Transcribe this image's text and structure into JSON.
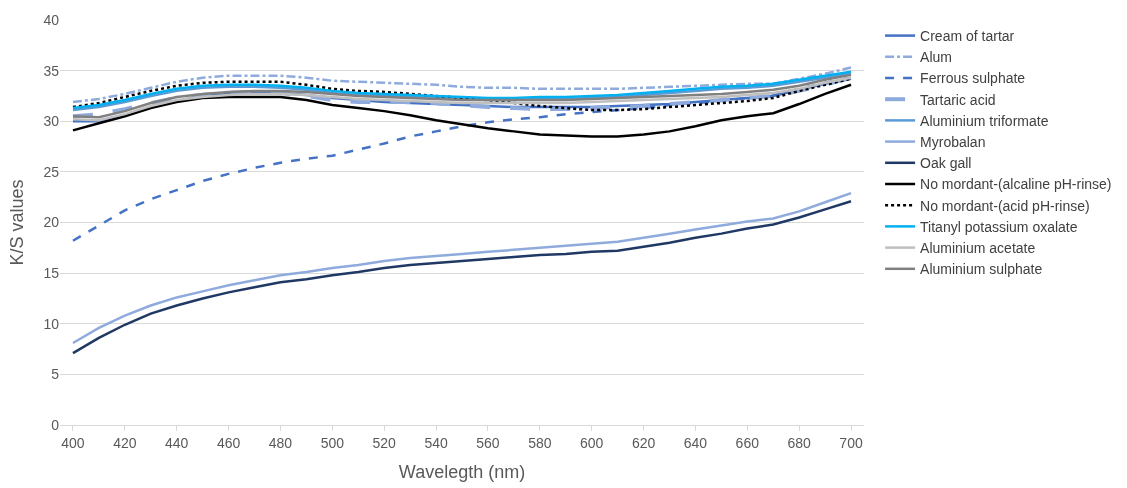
{
  "chart_data": {
    "type": "line",
    "xlabel": "Wavelegth (nm)",
    "ylabel": "K/S values",
    "x": [
      400,
      410,
      420,
      430,
      440,
      450,
      460,
      470,
      480,
      490,
      500,
      510,
      520,
      530,
      540,
      550,
      560,
      570,
      580,
      590,
      600,
      610,
      620,
      630,
      640,
      650,
      660,
      670,
      680,
      690,
      700
    ],
    "xlim": [
      395,
      705
    ],
    "xticks": [
      400,
      420,
      440,
      460,
      480,
      500,
      520,
      540,
      560,
      580,
      600,
      620,
      640,
      660,
      680,
      700
    ],
    "ylim": [
      0,
      40
    ],
    "yticks": [
      0,
      5,
      10,
      15,
      20,
      25,
      30,
      35,
      40
    ],
    "grid": "y",
    "legend": "right",
    "marker": "none",
    "series": [
      {
        "name": "Cream of tartar",
        "color": "#4472c4",
        "line_style": "solid",
        "values": [
          30.0,
          30.0,
          30.6,
          31.4,
          32.0,
          32.5,
          32.7,
          32.8,
          32.8,
          32.6,
          32.3,
          32.1,
          31.9,
          31.8,
          31.7,
          31.6,
          31.5,
          31.4,
          31.4,
          31.4,
          31.4,
          31.5,
          31.6,
          31.7,
          31.9,
          32.1,
          32.3,
          32.5,
          33.1,
          33.7,
          34.2
        ]
      },
      {
        "name": "Alum",
        "color": "#8faadc",
        "line_style": "dashdot",
        "values": [
          31.9,
          32.2,
          32.7,
          33.3,
          33.9,
          34.3,
          34.5,
          34.5,
          34.5,
          34.3,
          34.0,
          33.9,
          33.8,
          33.7,
          33.6,
          33.4,
          33.3,
          33.3,
          33.2,
          33.2,
          33.2,
          33.2,
          33.3,
          33.4,
          33.5,
          33.6,
          33.7,
          33.7,
          34.2,
          34.7,
          35.3
        ]
      },
      {
        "name": "Ferrous sulphate",
        "color": "#4472c4",
        "line_style": "dashed",
        "values": [
          18.2,
          19.7,
          21.2,
          22.3,
          23.2,
          24.1,
          24.8,
          25.4,
          25.9,
          26.3,
          26.6,
          27.2,
          27.8,
          28.5,
          29.0,
          29.5,
          29.9,
          30.2,
          30.4,
          30.7,
          30.9,
          31.1,
          31.3,
          31.6,
          31.8,
          32.0,
          32.3,
          32.6,
          33.2,
          33.8,
          34.3
        ]
      },
      {
        "name": "Tartaric acid",
        "color": "#8faadc",
        "line_style": "longdash",
        "values": [
          30.5,
          30.7,
          31.2,
          31.8,
          32.3,
          32.6,
          32.8,
          32.9,
          32.8,
          32.5,
          32.1,
          31.9,
          31.9,
          31.9,
          31.8,
          31.6,
          31.4,
          31.3,
          31.2,
          31.2,
          31.3,
          31.4,
          31.5,
          31.7,
          31.9,
          32.1,
          32.3,
          32.5,
          33.0,
          33.6,
          34.3
        ]
      },
      {
        "name": "Aluminium triformate",
        "color": "#5b9bd5",
        "line_style": "solid",
        "values": [
          31.1,
          31.4,
          31.9,
          32.5,
          33.0,
          33.3,
          33.4,
          33.4,
          33.3,
          33.1,
          32.8,
          32.6,
          32.5,
          32.4,
          32.3,
          32.2,
          32.1,
          32.1,
          32.2,
          32.2,
          32.3,
          32.4,
          32.6,
          32.8,
          33.0,
          33.2,
          33.3,
          33.5,
          33.9,
          34.3,
          34.7
        ]
      },
      {
        "name": "Myrobalan",
        "color": "#8faadc",
        "line_style": "solid",
        "values": [
          8.1,
          9.6,
          10.8,
          11.8,
          12.6,
          13.2,
          13.8,
          14.3,
          14.8,
          15.1,
          15.5,
          15.8,
          16.2,
          16.5,
          16.7,
          16.9,
          17.1,
          17.3,
          17.5,
          17.7,
          17.9,
          18.1,
          18.5,
          18.9,
          19.3,
          19.7,
          20.1,
          20.4,
          21.1,
          22.0,
          22.9
        ]
      },
      {
        "name": "Oak gall",
        "color": "#203864",
        "line_style": "solid",
        "values": [
          7.1,
          8.6,
          9.9,
          11.0,
          11.8,
          12.5,
          13.1,
          13.6,
          14.1,
          14.4,
          14.8,
          15.1,
          15.5,
          15.8,
          16.0,
          16.2,
          16.4,
          16.6,
          16.8,
          16.9,
          17.1,
          17.2,
          17.6,
          18.0,
          18.5,
          18.9,
          19.4,
          19.8,
          20.5,
          21.3,
          22.1
        ]
      },
      {
        "name": "No mordant-(alcaline pH-rinse)",
        "color": "#000000",
        "line_style": "solid",
        "values": [
          29.1,
          29.8,
          30.5,
          31.3,
          31.9,
          32.3,
          32.4,
          32.4,
          32.4,
          32.1,
          31.6,
          31.3,
          31.0,
          30.6,
          30.1,
          29.7,
          29.3,
          29.0,
          28.7,
          28.6,
          28.5,
          28.5,
          28.7,
          29.0,
          29.5,
          30.1,
          30.5,
          30.8,
          31.7,
          32.7,
          33.6
        ]
      },
      {
        "name": "No mordant-(acid pH-rinse)",
        "color": "#000000",
        "line_style": "dotted",
        "values": [
          31.4,
          31.8,
          32.4,
          33.0,
          33.5,
          33.8,
          33.9,
          33.9,
          33.9,
          33.6,
          33.2,
          33.0,
          32.9,
          32.7,
          32.5,
          32.3,
          32.1,
          31.8,
          31.5,
          31.3,
          31.1,
          31.1,
          31.2,
          31.4,
          31.6,
          31.8,
          32.0,
          32.3,
          33.0,
          33.6,
          34.2
        ]
      },
      {
        "name": "Titanyl potassium oxalate",
        "color": "#00b0f0",
        "line_style": "solid",
        "values": [
          31.3,
          31.6,
          32.1,
          32.7,
          33.2,
          33.5,
          33.6,
          33.6,
          33.5,
          33.3,
          33.0,
          32.8,
          32.7,
          32.6,
          32.5,
          32.4,
          32.3,
          32.3,
          32.4,
          32.4,
          32.5,
          32.6,
          32.8,
          33.0,
          33.2,
          33.4,
          33.5,
          33.7,
          34.1,
          34.5,
          34.9
        ]
      },
      {
        "name": "Aluminium acetate",
        "color": "#bfbfbf",
        "line_style": "solid",
        "values": [
          30.2,
          30.1,
          30.7,
          31.5,
          32.1,
          32.4,
          32.6,
          32.7,
          32.7,
          32.6,
          32.4,
          32.2,
          32.1,
          32.0,
          31.9,
          31.8,
          31.8,
          31.8,
          31.8,
          31.8,
          31.9,
          32.0,
          32.1,
          32.2,
          32.3,
          32.4,
          32.6,
          32.8,
          33.2,
          33.8,
          34.3
        ]
      },
      {
        "name": "Aluminium sulphate",
        "color": "#808080",
        "line_style": "solid",
        "values": [
          30.5,
          30.4,
          31.0,
          31.8,
          32.4,
          32.7,
          32.9,
          33.0,
          33.0,
          32.9,
          32.7,
          32.5,
          32.4,
          32.3,
          32.2,
          32.1,
          32.1,
          32.1,
          32.1,
          32.1,
          32.2,
          32.3,
          32.4,
          32.5,
          32.6,
          32.7,
          32.9,
          33.1,
          33.5,
          34.1,
          34.6
        ]
      }
    ]
  }
}
